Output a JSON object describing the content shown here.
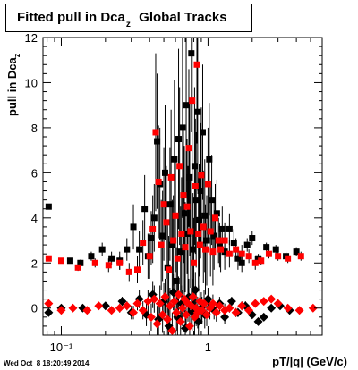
{
  "title": {
    "main": "Fitted pull in Dca",
    "sub": "z",
    "suffix": "  Global Tracks"
  },
  "ylabel": {
    "main": "pull in Dca",
    "sub": "z"
  },
  "xlabel": "pT/|q| (GeV/c)",
  "datestamp": "Wed Oct  8 18:20:49 2014",
  "chart_data": {
    "type": "scatter",
    "xscale": "log",
    "xlim": [
      0.075,
      6.0
    ],
    "ylim": [
      -1.2,
      12.0
    ],
    "xticks_major": [
      0.1,
      1
    ],
    "xtick_labels": [
      "10⁻¹",
      "1"
    ],
    "yticks_major": [
      0,
      2,
      4,
      6,
      8,
      10,
      12
    ],
    "ytick_labels": [
      "0",
      "2",
      "4",
      "6",
      "8",
      "10",
      "12"
    ],
    "grid": false,
    "legend": "none",
    "series": [
      {
        "marker": "square",
        "color": "#000000",
        "points": [
          [
            0.082,
            4.5,
            0.1
          ],
          [
            0.115,
            2.1,
            0.1
          ],
          [
            0.135,
            2.0,
            0.15
          ],
          [
            0.16,
            2.3,
            0.2
          ],
          [
            0.19,
            2.6,
            0.3
          ],
          [
            0.22,
            2.2,
            0.3
          ],
          [
            0.25,
            2.1,
            0.4
          ],
          [
            0.28,
            2.6,
            0.5
          ],
          [
            0.31,
            3.6,
            1.0
          ],
          [
            0.34,
            2.6,
            0.8
          ],
          [
            0.37,
            4.4,
            1.5
          ],
          [
            0.39,
            2.3,
            1.0
          ],
          [
            0.41,
            3.1,
            1.2
          ],
          [
            0.43,
            4.0,
            1.5
          ],
          [
            0.45,
            7.4,
            3.0
          ],
          [
            0.47,
            5.5,
            2.5
          ],
          [
            0.49,
            3.2,
            2.0
          ],
          [
            0.51,
            6.0,
            3.0
          ],
          [
            0.53,
            1.8,
            2.0
          ],
          [
            0.55,
            4.6,
            2.5
          ],
          [
            0.57,
            2.8,
            2.0
          ],
          [
            0.59,
            6.6,
            3.5
          ],
          [
            0.61,
            1.2,
            1.5
          ],
          [
            0.63,
            7.5,
            4.0
          ],
          [
            0.65,
            2.5,
            2.0
          ],
          [
            0.67,
            8.0,
            4.0
          ],
          [
            0.69,
            4.2,
            3.0
          ],
          [
            0.71,
            9.0,
            4.0
          ],
          [
            0.73,
            3.3,
            3.0
          ],
          [
            0.75,
            5.8,
            3.5
          ],
          [
            0.77,
            11.3,
            3.5
          ],
          [
            0.79,
            2.6,
            2.5
          ],
          [
            0.81,
            6.3,
            3.5
          ],
          [
            0.83,
            4.8,
            3.0
          ],
          [
            0.85,
            8.7,
            3.5
          ],
          [
            0.87,
            3.9,
            2.5
          ],
          [
            0.89,
            5.2,
            3.0
          ],
          [
            0.92,
            7.8,
            3.0
          ],
          [
            0.95,
            4.1,
            2.5
          ],
          [
            0.98,
            3.0,
            2.0
          ],
          [
            1.02,
            6.6,
            2.5
          ],
          [
            1.06,
            4.8,
            2.0
          ],
          [
            1.1,
            3.2,
            1.5
          ],
          [
            1.15,
            4.2,
            1.5
          ],
          [
            1.2,
            2.8,
            1.0
          ],
          [
            1.25,
            3.5,
            1.0
          ],
          [
            1.3,
            2.5,
            0.8
          ],
          [
            1.4,
            3.5,
            0.7
          ],
          [
            1.5,
            2.9,
            0.6
          ],
          [
            1.6,
            2.2,
            0.5
          ],
          [
            1.7,
            2.0,
            0.4
          ],
          [
            1.85,
            2.8,
            0.3
          ],
          [
            2.0,
            3.1,
            0.3
          ],
          [
            2.2,
            2.2,
            0.2
          ],
          [
            2.5,
            2.7,
            0.2
          ],
          [
            2.9,
            2.6,
            0.2
          ],
          [
            3.4,
            2.3,
            0.2
          ],
          [
            4.0,
            2.5,
            0.2
          ]
        ]
      },
      {
        "marker": "square",
        "color": "#ff0000",
        "points": [
          [
            0.082,
            2.2,
            0.1
          ],
          [
            0.1,
            2.1,
            0.1
          ],
          [
            0.13,
            1.8,
            0.15
          ],
          [
            0.17,
            2.0,
            0.2
          ],
          [
            0.21,
            1.9,
            0.3
          ],
          [
            0.25,
            2.0,
            0.3
          ],
          [
            0.29,
            1.6,
            0.4
          ],
          [
            0.33,
            1.7,
            0.6
          ],
          [
            0.36,
            2.9,
            1.0
          ],
          [
            0.4,
            2.3,
            1.0
          ],
          [
            0.42,
            3.5,
            1.5
          ],
          [
            0.44,
            7.8,
            3.5
          ],
          [
            0.46,
            5.6,
            2.5
          ],
          [
            0.48,
            2.8,
            2.0
          ],
          [
            0.5,
            4.6,
            2.5
          ],
          [
            0.52,
            3.8,
            2.5
          ],
          [
            0.54,
            1.7,
            1.5
          ],
          [
            0.56,
            5.8,
            3.0
          ],
          [
            0.58,
            3.0,
            2.0
          ],
          [
            0.6,
            4.1,
            2.5
          ],
          [
            0.62,
            2.2,
            2.0
          ],
          [
            0.64,
            6.3,
            3.5
          ],
          [
            0.66,
            3.3,
            2.5
          ],
          [
            0.68,
            5.0,
            3.0
          ],
          [
            0.7,
            2.7,
            2.0
          ],
          [
            0.72,
            4.5,
            3.0
          ],
          [
            0.74,
            7.1,
            3.5
          ],
          [
            0.76,
            3.4,
            2.5
          ],
          [
            0.78,
            9.2,
            3.5
          ],
          [
            0.8,
            2.0,
            2.0
          ],
          [
            0.82,
            5.4,
            3.0
          ],
          [
            0.84,
            10.8,
            3.5
          ],
          [
            0.86,
            3.3,
            2.5
          ],
          [
            0.88,
            2.8,
            2.0
          ],
          [
            0.9,
            5.9,
            3.0
          ],
          [
            0.93,
            3.6,
            2.5
          ],
          [
            0.96,
            2.6,
            2.0
          ],
          [
            1.0,
            5.5,
            2.5
          ],
          [
            1.04,
            3.4,
            2.0
          ],
          [
            1.08,
            2.5,
            1.5
          ],
          [
            1.12,
            4.0,
            1.5
          ],
          [
            1.18,
            3.0,
            1.0
          ],
          [
            1.22,
            2.6,
            1.0
          ],
          [
            1.3,
            3.0,
            0.8
          ],
          [
            1.4,
            2.4,
            0.6
          ],
          [
            1.55,
            2.6,
            0.5
          ],
          [
            1.7,
            2.4,
            0.4
          ],
          [
            1.9,
            2.3,
            0.3
          ],
          [
            2.1,
            2.0,
            0.3
          ],
          [
            2.3,
            2.1,
            0.2
          ],
          [
            2.6,
            2.4,
            0.2
          ],
          [
            3.0,
            2.3,
            0.2
          ],
          [
            3.5,
            2.2,
            0.2
          ],
          [
            4.3,
            2.3,
            0.2
          ]
        ]
      },
      {
        "marker": "diamond",
        "color": "#000000",
        "points": [
          [
            0.082,
            -0.2,
            0.1
          ],
          [
            0.1,
            0.0,
            0.1
          ],
          [
            0.14,
            0.0,
            0.1
          ],
          [
            0.2,
            0.1,
            0.1
          ],
          [
            0.26,
            0.3,
            0.2
          ],
          [
            0.3,
            -0.2,
            0.3
          ],
          [
            0.34,
            0.4,
            0.4
          ],
          [
            0.38,
            -0.3,
            0.5
          ],
          [
            0.42,
            0.6,
            0.6
          ],
          [
            0.46,
            -0.5,
            0.8
          ],
          [
            0.5,
            0.3,
            0.8
          ],
          [
            0.54,
            -0.8,
            0.8
          ],
          [
            0.58,
            0.7,
            0.8
          ],
          [
            0.62,
            -0.4,
            0.8
          ],
          [
            0.66,
            0.2,
            0.8
          ],
          [
            0.7,
            -0.9,
            0.8
          ],
          [
            0.74,
            0.5,
            0.8
          ],
          [
            0.78,
            -0.2,
            0.8
          ],
          [
            0.82,
            0.8,
            0.8
          ],
          [
            0.86,
            -0.6,
            0.7
          ],
          [
            0.9,
            0.0,
            0.7
          ],
          [
            0.95,
            -0.3,
            0.6
          ],
          [
            1.0,
            0.4,
            0.5
          ],
          [
            1.1,
            -0.1,
            0.4
          ],
          [
            1.2,
            0.2,
            0.3
          ],
          [
            1.3,
            -0.4,
            0.3
          ],
          [
            1.45,
            0.3,
            0.2
          ],
          [
            1.6,
            -0.2,
            0.2
          ],
          [
            1.8,
            0.1,
            0.2
          ],
          [
            2.0,
            -0.3,
            0.15
          ],
          [
            2.2,
            -0.6,
            0.15
          ],
          [
            2.4,
            -0.4,
            0.15
          ],
          [
            2.7,
            0.0,
            0.1
          ],
          [
            3.1,
            0.1,
            0.1
          ],
          [
            3.6,
            -0.1,
            0.1
          ]
        ]
      },
      {
        "marker": "diamond",
        "color": "#ff0000",
        "points": [
          [
            0.082,
            0.2,
            0.1
          ],
          [
            0.1,
            -0.1,
            0.1
          ],
          [
            0.12,
            0.0,
            0.1
          ],
          [
            0.15,
            -0.1,
            0.1
          ],
          [
            0.18,
            0.1,
            0.1
          ],
          [
            0.22,
            -0.1,
            0.1
          ],
          [
            0.25,
            0.0,
            0.2
          ],
          [
            0.28,
            0.1,
            0.2
          ],
          [
            0.31,
            -0.2,
            0.3
          ],
          [
            0.33,
            0.2,
            0.3
          ],
          [
            0.36,
            -0.1,
            0.4
          ],
          [
            0.39,
            0.3,
            0.5
          ],
          [
            0.41,
            -0.4,
            0.6
          ],
          [
            0.43,
            0.4,
            0.6
          ],
          [
            0.45,
            -0.7,
            0.8
          ],
          [
            0.47,
            0.2,
            0.8
          ],
          [
            0.49,
            -0.3,
            0.8
          ],
          [
            0.51,
            0.5,
            0.8
          ],
          [
            0.53,
            -0.5,
            0.8
          ],
          [
            0.55,
            0.1,
            0.8
          ],
          [
            0.57,
            -1.0,
            0.8
          ],
          [
            0.59,
            0.3,
            0.8
          ],
          [
            0.61,
            -0.2,
            0.8
          ],
          [
            0.63,
            0.6,
            0.8
          ],
          [
            0.65,
            -0.6,
            0.8
          ],
          [
            0.67,
            0.0,
            0.8
          ],
          [
            0.69,
            0.4,
            0.8
          ],
          [
            0.71,
            -0.3,
            0.8
          ],
          [
            0.73,
            0.2,
            0.8
          ],
          [
            0.75,
            -0.8,
            0.8
          ],
          [
            0.77,
            0.1,
            0.8
          ],
          [
            0.79,
            0.5,
            0.8
          ],
          [
            0.81,
            -0.4,
            0.8
          ],
          [
            0.83,
            0.0,
            0.8
          ],
          [
            0.85,
            -0.2,
            0.7
          ],
          [
            0.88,
            0.3,
            0.7
          ],
          [
            0.91,
            -0.1,
            0.6
          ],
          [
            0.94,
            0.2,
            0.6
          ],
          [
            0.98,
            -0.3,
            0.5
          ],
          [
            1.03,
            0.0,
            0.5
          ],
          [
            1.08,
            0.2,
            0.4
          ],
          [
            1.14,
            -0.2,
            0.4
          ],
          [
            1.2,
            0.1,
            0.3
          ],
          [
            1.3,
            -0.1,
            0.3
          ],
          [
            1.4,
            0.0,
            0.2
          ],
          [
            1.55,
            -0.2,
            0.2
          ],
          [
            1.7,
            0.1,
            0.2
          ],
          [
            1.9,
            -0.1,
            0.2
          ],
          [
            2.1,
            0.2,
            0.15
          ],
          [
            2.4,
            0.3,
            0.15
          ],
          [
            2.7,
            0.4,
            0.1
          ],
          [
            3.0,
            0.2,
            0.1
          ],
          [
            3.5,
            0.0,
            0.1
          ],
          [
            4.2,
            -0.1,
            0.1
          ],
          [
            5.2,
            0.0,
            0.1
          ]
        ]
      }
    ]
  }
}
